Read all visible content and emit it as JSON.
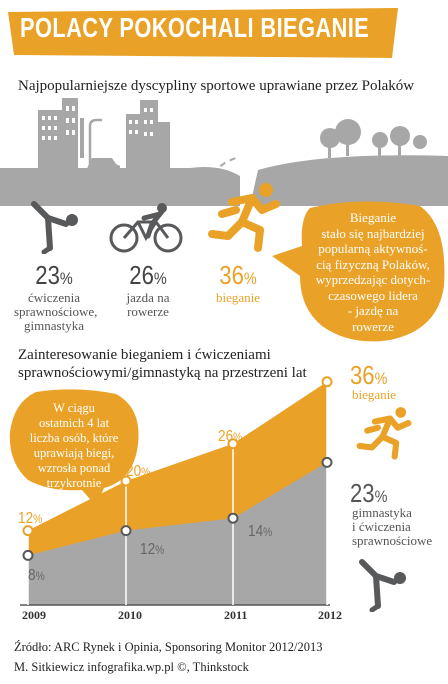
{
  "title": "POLACY POKOCHALI BIEGANIE",
  "subtitle_disciplines": "Najpopularniejsze dyscypliny sportowe uprawiane przez Polaków",
  "disciplines": [
    {
      "value": "23",
      "unit": "%",
      "label_lines": [
        "ćwiczenia",
        "sprawnościowe,",
        "gimnastyka"
      ],
      "icon": "gymnast-icon"
    },
    {
      "value": "26",
      "unit": "%",
      "label_lines": [
        "jazda na",
        "rowerze"
      ],
      "icon": "cyclist-icon"
    },
    {
      "value": "36",
      "unit": "%",
      "label_lines": [
        "bieganie"
      ],
      "icon": "runner-icon"
    }
  ],
  "callout_lines": [
    "Bieganie",
    "stało się najbardziej",
    "popularną aktywnoś-",
    "cią fizyczną Polaków,",
    "wyprzedzając dotych-",
    "czasowego lidera",
    "- jazdę na",
    "rowerze"
  ],
  "subtitle_trend_lines": [
    "Zainteresowanie bieganiem i ćwiczeniami",
    "sprawnościowymi/gimnastyką na przestrzeni lat"
  ],
  "bubble_lines": [
    "W ciągu",
    "ostatnich 4 lat",
    "liczba osób, które",
    "uprawiają biegi,",
    "wzrosła ponad",
    "trzykrotnie"
  ],
  "colors": {
    "accent": "#e9a227",
    "gray": "#a7a7a8",
    "dark": "#58595b"
  },
  "chart_data": {
    "type": "area",
    "x": [
      "2009",
      "2010",
      "2011",
      "2012"
    ],
    "series": [
      {
        "name": "bieganie",
        "values": [
          12,
          20,
          26,
          36
        ],
        "color": "#e9a227"
      },
      {
        "name": "gimnastyka i ćwiczenia sprawnościowe",
        "values": [
          8,
          12,
          14,
          23
        ],
        "color": "#a7a7a8"
      }
    ],
    "ylim": [
      0,
      36
    ],
    "legend_items": [
      {
        "value": "36",
        "unit": "%",
        "label_lines": [
          "bieganie"
        ]
      },
      {
        "value": "23",
        "unit": "%",
        "label_lines": [
          "gimnastyka",
          "i ćwiczenia",
          "sprawnościowe"
        ]
      }
    ]
  },
  "footer": {
    "source": "Źródło: ARC Rynek i Opinia, Sponsoring Monitor 2012/2013",
    "credit": "M. Sitkiewicz infografika.wp.pl ©, Thinkstock"
  }
}
